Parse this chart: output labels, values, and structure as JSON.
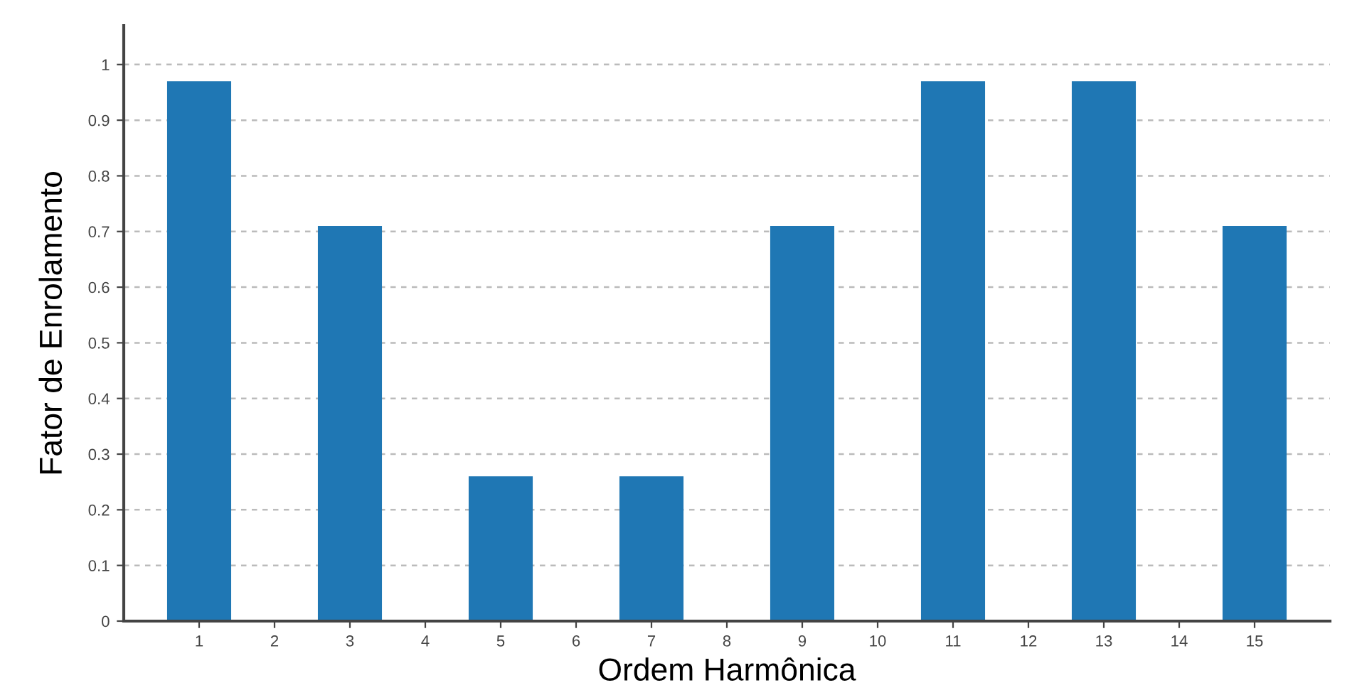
{
  "chart_data": {
    "type": "bar",
    "xlabel": "Ordem Harmônica",
    "ylabel": "Fator de Enrolamento",
    "categories": [
      "1",
      "2",
      "3",
      "4",
      "5",
      "6",
      "7",
      "8",
      "9",
      "10",
      "11",
      "12",
      "13",
      "14",
      "15"
    ],
    "values": [
      0.97,
      0,
      0.71,
      0,
      0.26,
      0,
      0.26,
      0,
      0.71,
      0,
      0.97,
      0,
      0.97,
      0,
      0.71
    ],
    "color": "#1f77b4",
    "ylim": [
      0,
      1.07
    ],
    "yticks": [
      0,
      {
        "value": 0.1,
        "label": "0.1"
      },
      {
        "value": 0.2,
        "label": "0.2"
      },
      {
        "value": 0.3,
        "label": "0.3"
      },
      {
        "value": 0.4,
        "label": "0.4"
      },
      {
        "value": 0.5,
        "label": "0.5"
      },
      {
        "value": 0.6,
        "label": "0.6"
      },
      {
        "value": 0.7,
        "label": "0.7"
      },
      {
        "value": 0.8,
        "label": "0.8"
      },
      {
        "value": 0.9,
        "label": "0.9"
      },
      1
    ],
    "grid": "y",
    "legend": false
  }
}
